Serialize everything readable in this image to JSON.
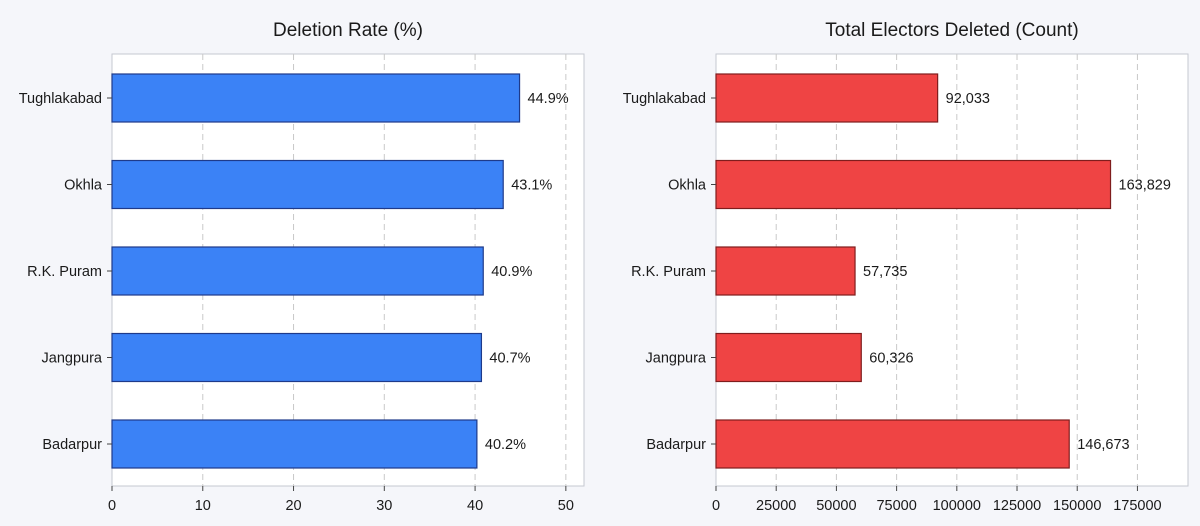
{
  "chart_data": [
    {
      "type": "bar",
      "orientation": "horizontal",
      "title": "Deletion Rate (%)",
      "categories": [
        "Tughlakabad",
        "Okhla",
        "R.K. Puram",
        "Jangpura",
        "Badarpur"
      ],
      "values": [
        44.9,
        43.1,
        40.9,
        40.7,
        40.2
      ],
      "value_labels": [
        "44.9%",
        "43.1%",
        "40.9%",
        "40.7%",
        "40.2%"
      ],
      "xlim": [
        0,
        52
      ],
      "xticks": [
        0,
        10,
        20,
        30,
        40,
        50
      ],
      "xtick_labels": [
        "0",
        "10",
        "20",
        "30",
        "40",
        "50"
      ],
      "bar_color": "#3b82f6",
      "edge_color": "#1e3a8a",
      "grid": "vertical-dashed"
    },
    {
      "type": "bar",
      "orientation": "horizontal",
      "title": "Total Electors Deleted (Count)",
      "categories": [
        "Tughlakabad",
        "Okhla",
        "R.K. Puram",
        "Jangpura",
        "Badarpur"
      ],
      "values": [
        92033,
        163829,
        57735,
        60326,
        146673
      ],
      "value_labels": [
        "92,033",
        "163,829",
        "57,735",
        "60,326",
        "146,673"
      ],
      "xlim": [
        0,
        196000
      ],
      "xticks": [
        0,
        25000,
        50000,
        75000,
        100000,
        125000,
        150000,
        175000
      ],
      "xtick_labels": [
        "0",
        "25000",
        "50000",
        "75000",
        "100000",
        "125000",
        "150000",
        "175000"
      ],
      "bar_color": "#ef4444",
      "edge_color": "#7f1d1d",
      "grid": "vertical-dashed"
    }
  ]
}
